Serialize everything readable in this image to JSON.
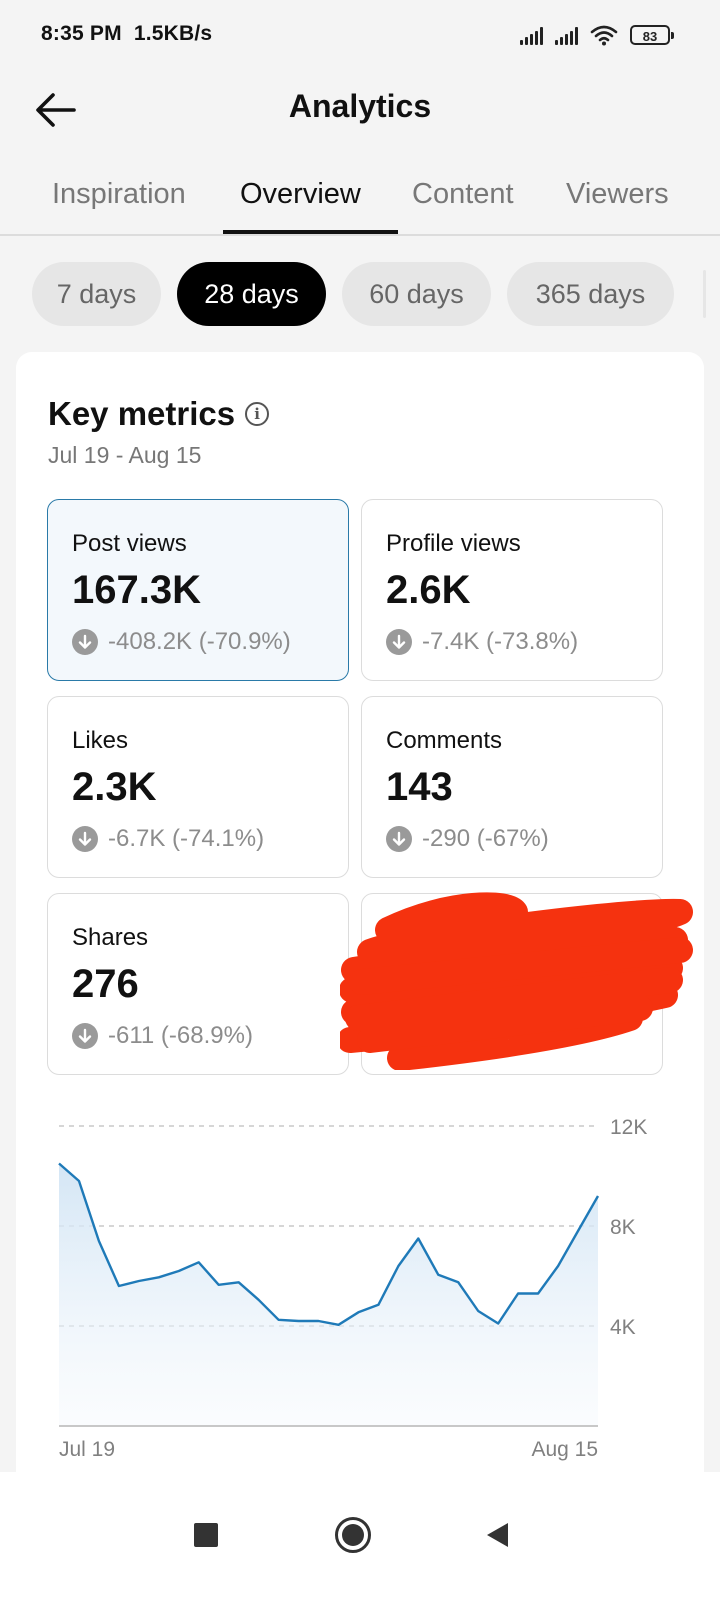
{
  "status_bar": {
    "time": "8:35 PM",
    "net_speed": "1.5KB/s",
    "battery": "83"
  },
  "header": {
    "title": "Analytics",
    "back_icon": "arrow-left-icon"
  },
  "tabs": [
    {
      "label": "Inspiration",
      "active": false
    },
    {
      "label": "Overview",
      "active": true
    },
    {
      "label": "Content",
      "active": false
    },
    {
      "label": "Viewers",
      "active": false
    }
  ],
  "ranges": [
    {
      "label": "7 days",
      "active": false
    },
    {
      "label": "28 days",
      "active": true
    },
    {
      "label": "60 days",
      "active": false
    },
    {
      "label": "365 days",
      "active": false
    }
  ],
  "key_metrics": {
    "title": "Key metrics",
    "info_icon": "info-icon",
    "date_range": "Jul 19 - Aug 15",
    "metrics": [
      {
        "label": "Post views",
        "value": "167.3K",
        "change": "-408.2K (-70.9%)",
        "selected": true
      },
      {
        "label": "Profile views",
        "value": "2.6K",
        "change": "-7.4K (-73.8%)",
        "selected": false
      },
      {
        "label": "Likes",
        "value": "2.3K",
        "change": "-6.7K (-74.1%)",
        "selected": false
      },
      {
        "label": "Comments",
        "value": "143",
        "change": "-290 (-67%)",
        "selected": false
      },
      {
        "label": "Shares",
        "value": "276",
        "change": "-611 (-68.9%)",
        "selected": false
      }
    ],
    "redaction_color": "#f5320f"
  },
  "chart_data": {
    "type": "area",
    "x_start_label": "Jul 19",
    "x_end_label": "Aug 15",
    "y_tick_labels": [
      "12K",
      "8K",
      "4K"
    ],
    "y_ticks": [
      12000,
      8000,
      4000
    ],
    "ylim": [
      0,
      12000
    ],
    "grid": "dashed horizontal",
    "line_color": "#1f7ab8",
    "values": [
      10500,
      9800,
      7400,
      5600,
      5800,
      5950,
      6200,
      6550,
      5650,
      5750,
      5050,
      4250,
      4200,
      4200,
      4050,
      4550,
      4850,
      6400,
      7500,
      6050,
      5750,
      4600,
      4100,
      5300,
      5300,
      6400,
      7800,
      9200
    ]
  },
  "nav_bar": {
    "recents_icon": "square-icon",
    "home_icon": "circle-home-icon",
    "back_icon": "triangle-back-icon"
  }
}
